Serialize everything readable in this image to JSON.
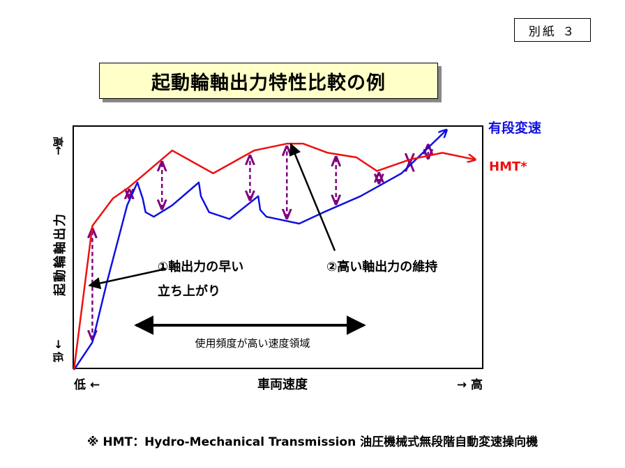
{
  "attachment_label": "別紙 ３",
  "chart_data": {
    "type": "line",
    "title": "起動輪軸出力特性比較の例",
    "xlabel": "車両速度",
    "ylabel": "起動輪軸出力",
    "x_low": "低 ←",
    "x_high": "→ 高",
    "y_high": "高",
    "y_low": "低",
    "arrow_up": "↑",
    "arrow_down": "↓",
    "grid": false,
    "series": [
      {
        "name": "有段変速",
        "color": "#1010e0",
        "points": [
          [
            0,
            0
          ],
          [
            0.045,
            0.12
          ],
          [
            0.08,
            0.38
          ],
          [
            0.13,
            0.72
          ],
          [
            0.155,
            0.82
          ],
          [
            0.168,
            0.75
          ],
          [
            0.175,
            0.69
          ],
          [
            0.195,
            0.67
          ],
          [
            0.24,
            0.72
          ],
          [
            0.305,
            0.82
          ],
          [
            0.31,
            0.76
          ],
          [
            0.33,
            0.69
          ],
          [
            0.38,
            0.66
          ],
          [
            0.45,
            0.76
          ],
          [
            0.455,
            0.7
          ],
          [
            0.47,
            0.67
          ],
          [
            0.55,
            0.64
          ],
          [
            0.61,
            0.69
          ],
          [
            0.7,
            0.76
          ],
          [
            0.8,
            0.86
          ],
          [
            0.91,
            1.05
          ]
        ]
      },
      {
        "name": "HMT*",
        "color": "#ee1010",
        "points": [
          [
            0,
            0
          ],
          [
            0.045,
            0.63
          ],
          [
            0.095,
            0.75
          ],
          [
            0.135,
            0.8
          ],
          [
            0.24,
            0.96
          ],
          [
            0.34,
            0.86
          ],
          [
            0.44,
            0.96
          ],
          [
            0.52,
            0.99
          ],
          [
            0.56,
            0.99
          ],
          [
            0.62,
            0.95
          ],
          [
            0.69,
            0.93
          ],
          [
            0.74,
            0.87
          ],
          [
            0.82,
            0.92
          ],
          [
            0.9,
            0.95
          ],
          [
            0.98,
            0.92
          ]
        ]
      }
    ],
    "gap_markers_x": [
      0.045,
      0.135,
      0.215,
      0.43,
      0.52,
      0.64,
      0.745,
      0.82,
      0.865
    ],
    "annotations": [
      {
        "text_lines": [
          "①軸出力の早い",
          "立ち上がり"
        ]
      },
      {
        "text_lines": [
          "②高い軸出力の維持"
        ]
      },
      {
        "text": "使用頻度が高い速度領域"
      }
    ]
  },
  "footnote": "※ HMT：Hydro-Mechanical Transmission 油圧機械式無段階自動変速操向機"
}
